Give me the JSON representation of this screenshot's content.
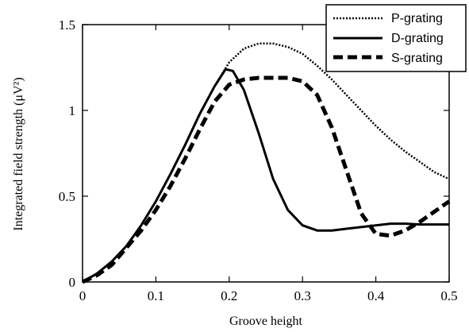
{
  "chart_data": {
    "type": "line",
    "xlabel": "Groove height",
    "ylabel": "Integrated field strength (μV²)",
    "xlim": [
      0,
      0.5
    ],
    "ylim": [
      0,
      1.5
    ],
    "x_ticks": [
      0,
      0.1,
      0.2,
      0.3,
      0.4,
      0.5
    ],
    "x_tick_labels": [
      "0",
      "0.1",
      "0.2",
      "0.3",
      "0.4",
      "0.5"
    ],
    "y_ticks": [
      0,
      0.5,
      1,
      1.5
    ],
    "y_tick_labels": [
      "0",
      "0.5",
      "1",
      "1.5"
    ],
    "grid": false,
    "legend_position": "top-right",
    "series": [
      {
        "name": "P-grating",
        "style": "dotted",
        "color": "#000000",
        "points": [
          [
            0,
            0
          ],
          [
            0.02,
            0.05
          ],
          [
            0.04,
            0.12
          ],
          [
            0.06,
            0.21
          ],
          [
            0.08,
            0.33
          ],
          [
            0.1,
            0.47
          ],
          [
            0.12,
            0.63
          ],
          [
            0.14,
            0.8
          ],
          [
            0.16,
            0.98
          ],
          [
            0.18,
            1.14
          ],
          [
            0.2,
            1.28
          ],
          [
            0.22,
            1.36
          ],
          [
            0.24,
            1.39
          ],
          [
            0.26,
            1.39
          ],
          [
            0.28,
            1.37
          ],
          [
            0.3,
            1.33
          ],
          [
            0.32,
            1.26
          ],
          [
            0.34,
            1.18
          ],
          [
            0.36,
            1.09
          ],
          [
            0.38,
            1.0
          ],
          [
            0.4,
            0.91
          ],
          [
            0.42,
            0.83
          ],
          [
            0.44,
            0.76
          ],
          [
            0.46,
            0.7
          ],
          [
            0.48,
            0.64
          ],
          [
            0.5,
            0.6
          ]
        ]
      },
      {
        "name": "D-grating",
        "style": "solid",
        "color": "#000000",
        "points": [
          [
            0,
            0
          ],
          [
            0.02,
            0.05
          ],
          [
            0.04,
            0.12
          ],
          [
            0.06,
            0.21
          ],
          [
            0.08,
            0.33
          ],
          [
            0.1,
            0.47
          ],
          [
            0.12,
            0.63
          ],
          [
            0.14,
            0.8
          ],
          [
            0.16,
            0.98
          ],
          [
            0.18,
            1.14
          ],
          [
            0.195,
            1.24
          ],
          [
            0.205,
            1.23
          ],
          [
            0.22,
            1.12
          ],
          [
            0.24,
            0.87
          ],
          [
            0.26,
            0.6
          ],
          [
            0.28,
            0.42
          ],
          [
            0.3,
            0.33
          ],
          [
            0.32,
            0.3
          ],
          [
            0.34,
            0.3
          ],
          [
            0.36,
            0.31
          ],
          [
            0.38,
            0.32
          ],
          [
            0.4,
            0.33
          ],
          [
            0.42,
            0.34
          ],
          [
            0.44,
            0.34
          ],
          [
            0.46,
            0.335
          ],
          [
            0.48,
            0.335
          ],
          [
            0.5,
            0.335
          ]
        ]
      },
      {
        "name": "S-grating",
        "style": "dashed",
        "color": "#000000",
        "points": [
          [
            0,
            0
          ],
          [
            0.02,
            0.04
          ],
          [
            0.04,
            0.1
          ],
          [
            0.06,
            0.2
          ],
          [
            0.08,
            0.3
          ],
          [
            0.1,
            0.42
          ],
          [
            0.12,
            0.56
          ],
          [
            0.14,
            0.72
          ],
          [
            0.16,
            0.89
          ],
          [
            0.18,
            1.05
          ],
          [
            0.2,
            1.15
          ],
          [
            0.22,
            1.18
          ],
          [
            0.24,
            1.19
          ],
          [
            0.26,
            1.19
          ],
          [
            0.28,
            1.19
          ],
          [
            0.3,
            1.17
          ],
          [
            0.32,
            1.09
          ],
          [
            0.34,
            0.9
          ],
          [
            0.36,
            0.65
          ],
          [
            0.38,
            0.4
          ],
          [
            0.4,
            0.28
          ],
          [
            0.42,
            0.27
          ],
          [
            0.44,
            0.3
          ],
          [
            0.46,
            0.35
          ],
          [
            0.48,
            0.41
          ],
          [
            0.5,
            0.47
          ]
        ]
      }
    ]
  }
}
